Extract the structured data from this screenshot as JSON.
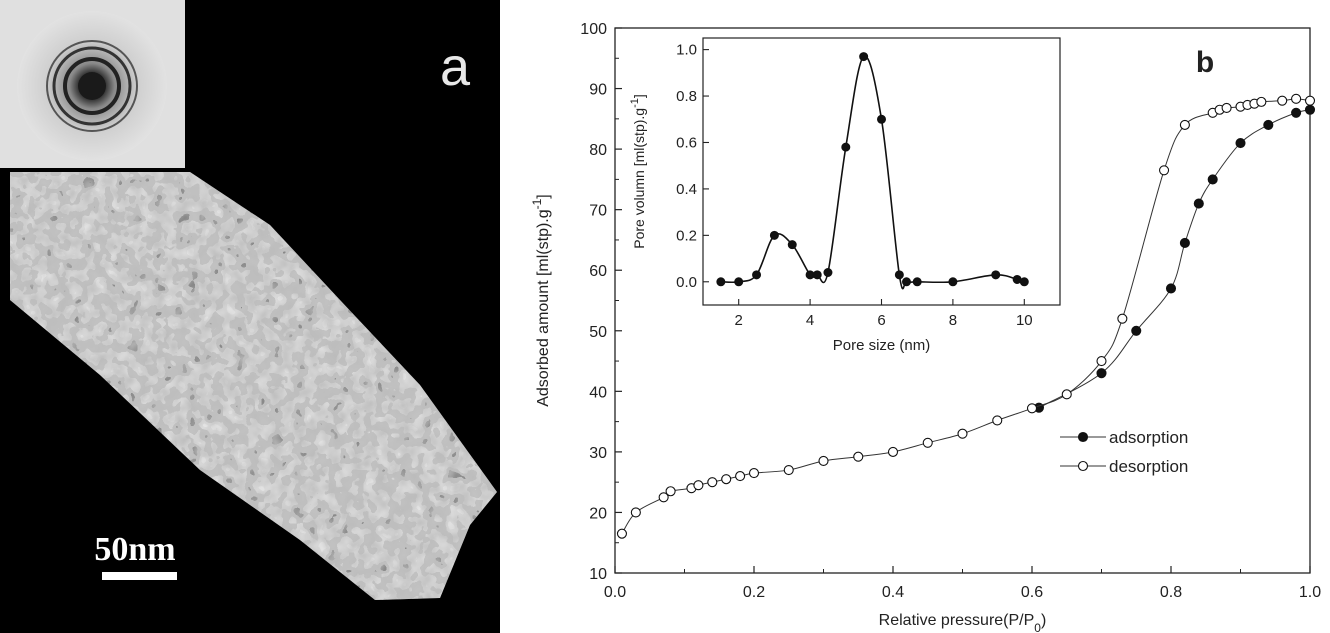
{
  "panel_a": {
    "label": "a",
    "scale_bar_label": "50nm"
  },
  "panel_b": {
    "label": "b"
  },
  "chart_data": [
    {
      "type": "line",
      "xlabel": "Relative pressure(P/P0)",
      "ylabel": "Adsorbed amount [ml(stp).g-1]",
      "xlim": [
        0.0,
        1.0
      ],
      "ylim": [
        10,
        100
      ],
      "xticks": [
        "0.0",
        "0.2",
        "0.4",
        "0.6",
        "0.8",
        "1.0"
      ],
      "yticks": [
        "10",
        "20",
        "30",
        "40",
        "50",
        "60",
        "70",
        "80",
        "90",
        "100"
      ],
      "legend_position": "right",
      "series": [
        {
          "name": "adsorption",
          "marker": "filled-circle",
          "x": [
            0.61,
            0.7,
            0.75,
            0.8,
            0.82,
            0.84,
            0.86,
            0.9,
            0.94,
            0.98,
            1.0
          ],
          "y": [
            37.3,
            43.0,
            50.0,
            57.0,
            64.5,
            71.0,
            75.0,
            81.0,
            84.0,
            86.0,
            86.5
          ]
        },
        {
          "name": "desorption",
          "marker": "open-circle",
          "x": [
            0.01,
            0.03,
            0.07,
            0.08,
            0.11,
            0.12,
            0.14,
            0.16,
            0.18,
            0.2,
            0.25,
            0.3,
            0.35,
            0.4,
            0.45,
            0.5,
            0.55,
            0.6,
            0.65,
            0.7,
            0.73,
            0.79,
            0.82,
            0.86,
            0.87,
            0.88,
            0.9,
            0.91,
            0.92,
            0.93,
            0.96,
            0.98,
            1.0
          ],
          "y": [
            16.5,
            20.0,
            22.5,
            23.5,
            24.0,
            24.5,
            25.0,
            25.5,
            26.0,
            26.5,
            27.0,
            28.5,
            29.2,
            30.0,
            31.5,
            33.0,
            35.2,
            37.2,
            39.5,
            45.0,
            52.0,
            76.5,
            84.0,
            86.0,
            86.5,
            86.8,
            87.0,
            87.3,
            87.5,
            87.8,
            88.0,
            88.3,
            88.0
          ]
        }
      ]
    },
    {
      "type": "line",
      "xlabel": "Pore size (nm)",
      "ylabel": "Pore volumn [ml(stp).g-1]",
      "xlim": [
        1,
        11
      ],
      "ylim": [
        -0.1,
        1.05
      ],
      "xticks": [
        "2",
        "4",
        "6",
        "8",
        "10"
      ],
      "yticks": [
        "0.0",
        "0.2",
        "0.4",
        "0.6",
        "0.8",
        "1.0"
      ],
      "series": [
        {
          "marker": "filled-circle",
          "x": [
            1.5,
            2.0,
            2.5,
            3.0,
            3.5,
            4.0,
            4.2,
            4.5,
            5.0,
            5.5,
            6.0,
            6.5,
            6.7,
            7.0,
            8.0,
            9.2,
            9.8,
            10.0
          ],
          "y": [
            0.0,
            0.0,
            0.03,
            0.2,
            0.16,
            0.03,
            0.03,
            0.04,
            0.58,
            0.97,
            0.7,
            0.03,
            0.0,
            0.0,
            0.0,
            0.03,
            0.01,
            0.0
          ]
        }
      ]
    }
  ]
}
